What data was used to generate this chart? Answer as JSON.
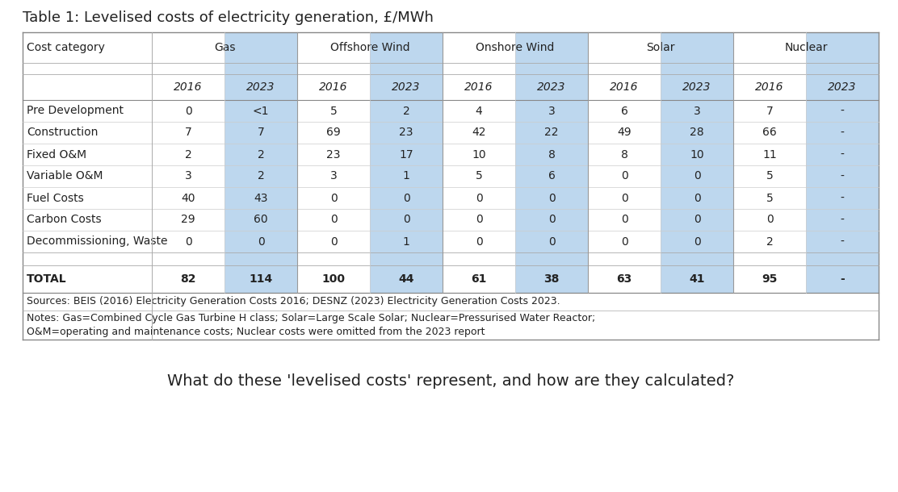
{
  "title": "Table 1: Levelised costs of electricity generation, £/MWh",
  "question": "What do these 'levelised costs' represent, and how are they calculated?",
  "sources_text": "Sources: BEIS (2016) Electricity Generation Costs 2016; DESNZ (2023) Electricity Generation Costs 2023.",
  "notes_line1": "Notes: Gas=Combined Cycle Gas Turbine H class; Solar=Large Scale Solar; Nuclear=Pressurised Water Reactor;",
  "notes_line2": "O&M=operating and maintenance costs; Nuclear costs were omitted from the 2023 report",
  "col_groups": [
    "Gas",
    "Offshore Wind",
    "Onshore Wind",
    "Solar",
    "Nuclear"
  ],
  "year_labels": [
    "2016",
    "2023",
    "2016",
    "2023",
    "2016",
    "2023",
    "2016",
    "2023",
    "2016",
    "2023"
  ],
  "row_labels": [
    "Pre Development",
    "Construction",
    "Fixed O&M",
    "Variable O&M",
    "Fuel Costs",
    "Carbon Costs",
    "Decommissioning, Waste"
  ],
  "data": [
    [
      "0",
      "<1",
      "5",
      "2",
      "4",
      "3",
      "6",
      "3",
      "7",
      "-"
    ],
    [
      "7",
      "7",
      "69",
      "23",
      "42",
      "22",
      "49",
      "28",
      "66",
      "-"
    ],
    [
      "2",
      "2",
      "23",
      "17",
      "10",
      "8",
      "8",
      "10",
      "11",
      "-"
    ],
    [
      "3",
      "2",
      "3",
      "1",
      "5",
      "6",
      "0",
      "0",
      "5",
      "-"
    ],
    [
      "40",
      "43",
      "0",
      "0",
      "0",
      "0",
      "0",
      "0",
      "5",
      "-"
    ],
    [
      "29",
      "60",
      "0",
      "0",
      "0",
      "0",
      "0",
      "0",
      "0",
      "-"
    ],
    [
      "0",
      "0",
      "0",
      "1",
      "0",
      "0",
      "0",
      "0",
      "2",
      "-"
    ]
  ],
  "total_row": [
    "82",
    "114",
    "100",
    "44",
    "61",
    "38",
    "63",
    "41",
    "95",
    "-"
  ],
  "highlight_color": "#bdd7ee",
  "bg_color": "#ffffff",
  "text_color": "#222222",
  "title_fontsize": 13,
  "header_fontsize": 10,
  "cell_fontsize": 10,
  "question_fontsize": 14
}
